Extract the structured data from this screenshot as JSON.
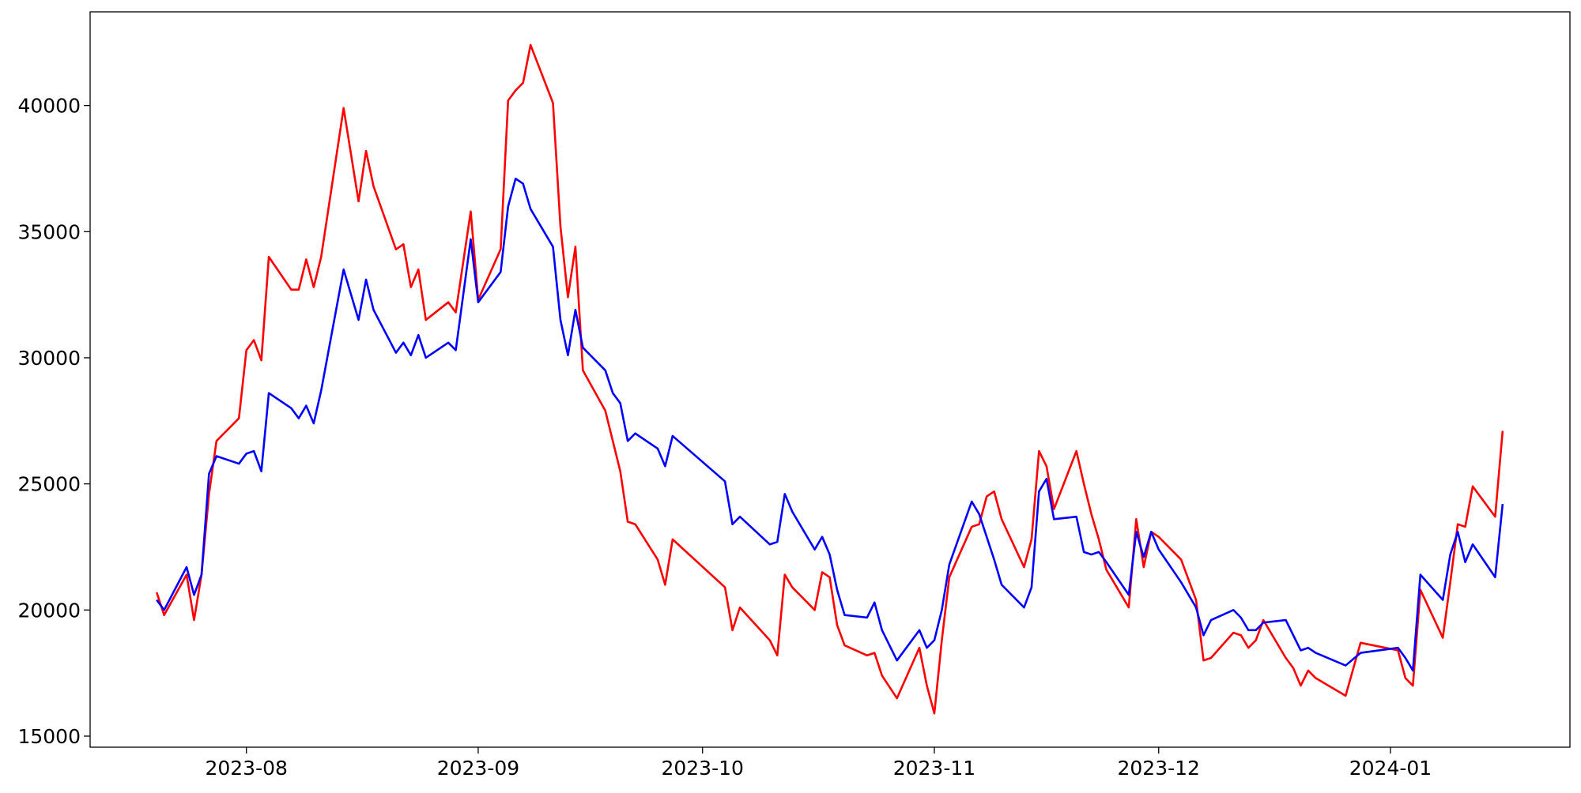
{
  "chart_data": {
    "type": "line",
    "x": [
      19558,
      19559,
      19562,
      19563,
      19564,
      19565,
      19566,
      19569,
      19570,
      19571,
      19572,
      19573,
      19576,
      19577,
      19578,
      19579,
      19580,
      19583,
      19585,
      19586,
      19587,
      19590,
      19591,
      19592,
      19593,
      19594,
      19597,
      19598,
      19600,
      19601,
      19604,
      19605,
      19606,
      19607,
      19608,
      19611,
      19612,
      19613,
      19614,
      19615,
      19618,
      19619,
      19620,
      19621,
      19622,
      19625,
      19626,
      19627,
      19634,
      19635,
      19636,
      19640,
      19641,
      19642,
      19643,
      19646,
      19647,
      19648,
      19649,
      19650,
      19653,
      19654,
      19655,
      19657,
      19660,
      19661,
      19662,
      19663,
      19664,
      19667,
      19668,
      19669,
      19670,
      19671,
      19674,
      19675,
      19676,
      19677,
      19678,
      19681,
      19682,
      19683,
      19684,
      19685,
      19688,
      19689,
      19690,
      19691,
      19692,
      19695,
      19697,
      19698,
      19699,
      19702,
      19703,
      19704,
      19705,
      19706,
      19709,
      19710,
      19711,
      19712,
      19713,
      19717,
      19719,
      19724,
      19725,
      19726,
      19727,
      19730,
      19731,
      19732,
      19733,
      19734,
      19737,
      19738
    ],
    "series": [
      {
        "color": "#ff0000",
        "values": [
          20700,
          19800,
          21400,
          19600,
          21400,
          24600,
          26700,
          27600,
          30300,
          30700,
          29900,
          34000,
          32700,
          32700,
          33900,
          32800,
          34000,
          39900,
          36200,
          38200,
          36800,
          34300,
          34500,
          32800,
          33500,
          31500,
          32200,
          31800,
          35800,
          32300,
          34300,
          40200,
          40600,
          40900,
          42400,
          40100,
          35200,
          32400,
          34400,
          29500,
          27900,
          26700,
          25500,
          23500,
          23400,
          22000,
          21000,
          22800,
          20900,
          19200,
          20100,
          18800,
          18200,
          21400,
          20900,
          20000,
          21500,
          21300,
          19400,
          18600,
          18200,
          18300,
          17400,
          16500,
          18500,
          17000,
          15900,
          18800,
          21300,
          23300,
          23400,
          24500,
          24700,
          23600,
          21700,
          22800,
          26300,
          25700,
          24000,
          26300,
          25000,
          23800,
          22800,
          21600,
          20100,
          23600,
          21700,
          23100,
          22900,
          22000,
          20400,
          18000,
          18100,
          19100,
          19000,
          18500,
          18800,
          19600,
          18100,
          17700,
          17000,
          17600,
          17300,
          16600,
          18700,
          18400,
          17300,
          17000,
          20800,
          18900,
          21100,
          23400,
          23300,
          24900,
          23700,
          27100
        ]
      },
      {
        "color": "#0000ff",
        "values": [
          20400,
          20000,
          21700,
          20600,
          21400,
          25400,
          26100,
          25800,
          26200,
          26300,
          25500,
          28600,
          28000,
          27600,
          28100,
          27400,
          28700,
          33500,
          31500,
          33100,
          31900,
          30200,
          30600,
          30100,
          30900,
          30000,
          30600,
          30300,
          34700,
          32200,
          33400,
          36000,
          37100,
          36900,
          35900,
          34400,
          31500,
          30100,
          31900,
          30400,
          29500,
          28600,
          28200,
          26700,
          27000,
          26400,
          25700,
          26900,
          25100,
          23400,
          23700,
          22600,
          22700,
          24600,
          23900,
          22400,
          22900,
          22200,
          20800,
          19800,
          19700,
          20300,
          19200,
          18000,
          19200,
          18500,
          18800,
          20000,
          21800,
          24300,
          23800,
          22900,
          22000,
          21000,
          20100,
          20900,
          24700,
          25200,
          23600,
          23700,
          22300,
          22200,
          22300,
          21900,
          20600,
          23100,
          22100,
          23100,
          22400,
          21100,
          20100,
          19000,
          19600,
          20000,
          19700,
          19200,
          19200,
          19500,
          19600,
          19000,
          18400,
          18500,
          18300,
          17800,
          18300,
          18500,
          18100,
          17600,
          21400,
          20400,
          22200,
          23100,
          21900,
          22600,
          21300,
          24200
        ]
      }
    ],
    "xlim": [
      19549.1,
      19747
    ],
    "xticks": [
      {
        "value": 19570,
        "label": "2023-08"
      },
      {
        "value": 19601,
        "label": "2023-09"
      },
      {
        "value": 19631,
        "label": "2023-10"
      },
      {
        "value": 19662,
        "label": "2023-11"
      },
      {
        "value": 19692,
        "label": "2023-12"
      },
      {
        "value": 19723,
        "label": "2024-01"
      }
    ],
    "ylim": [
      14561,
      43714
    ],
    "yticks": [
      15000,
      20000,
      25000,
      30000,
      35000,
      40000
    ]
  }
}
